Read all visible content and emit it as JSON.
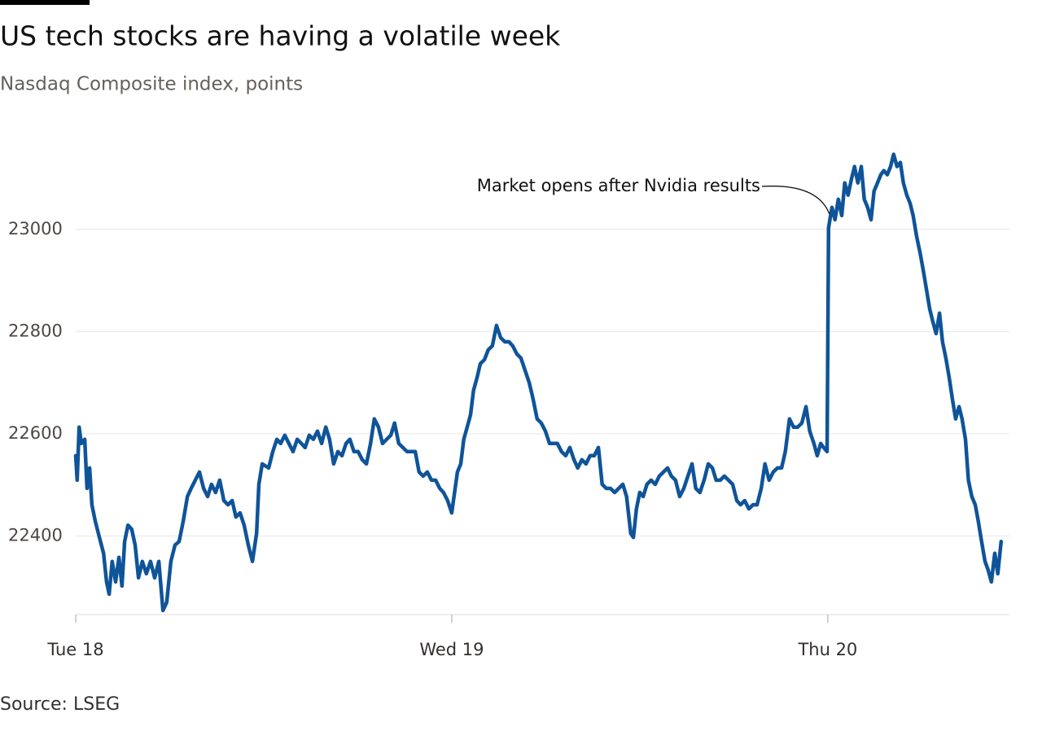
{
  "chart_data": {
    "type": "line",
    "title": "US tech stocks are having a volatile week",
    "subtitle": "Nasdaq Composite index, points",
    "source": "Source: LSEG",
    "annotation": "Market opens after Nvidia results",
    "annotation_x": 2.0,
    "annotation_y": 23030,
    "xlim": [
      0,
      2.483
    ],
    "ylim": [
      22246,
      23210
    ],
    "xticks": [
      {
        "value": 0,
        "label": "Tue 18"
      },
      {
        "value": 1,
        "label": "Wed 19"
      },
      {
        "value": 2,
        "label": "Thu 20"
      }
    ],
    "yticks": [
      22400,
      22600,
      22800,
      23000
    ],
    "grid": true,
    "series": [
      {
        "name": "Nasdaq Composite",
        "color": "#0f5499",
        "x": [
          0,
          0.004,
          0.009,
          0.015,
          0.024,
          0.03,
          0.037,
          0.043,
          0.052,
          0.063,
          0.074,
          0.082,
          0.089,
          0.097,
          0.106,
          0.115,
          0.123,
          0.13,
          0.139,
          0.149,
          0.158,
          0.167,
          0.177,
          0.188,
          0.199,
          0.21,
          0.221,
          0.232,
          0.242,
          0.253,
          0.264,
          0.275,
          0.286,
          0.297,
          0.307,
          0.318,
          0.329,
          0.34,
          0.351,
          0.361,
          0.372,
          0.383,
          0.394,
          0.405,
          0.416,
          0.426,
          0.437,
          0.448,
          0.459,
          0.47,
          0.481,
          0.487,
          0.496,
          0.513,
          0.524,
          0.535,
          0.545,
          0.556,
          0.567,
          0.578,
          0.589,
          0.6,
          0.61,
          0.621,
          0.632,
          0.643,
          0.654,
          0.665,
          0.675,
          0.686,
          0.697,
          0.708,
          0.719,
          0.729,
          0.74,
          0.751,
          0.762,
          0.773,
          0.784,
          0.794,
          0.805,
          0.816,
          0.827,
          0.838,
          0.848,
          0.859,
          0.87,
          0.881,
          0.892,
          0.903,
          0.913,
          0.924,
          0.935,
          0.946,
          0.957,
          0.968,
          0.978,
          0.989,
          1.0,
          1.006,
          1.015,
          1.024,
          1.032,
          1.041,
          1.05,
          1.058,
          1.067,
          1.076,
          1.087,
          1.097,
          1.108,
          1.119,
          1.13,
          1.141,
          1.152,
          1.162,
          1.173,
          1.184,
          1.195,
          1.206,
          1.216,
          1.227,
          1.238,
          1.249,
          1.26,
          1.271,
          1.281,
          1.292,
          1.303,
          1.314,
          1.325,
          1.335,
          1.346,
          1.357,
          1.368,
          1.379,
          1.39,
          1.4,
          1.411,
          1.422,
          1.433,
          1.444,
          1.455,
          1.465,
          1.476,
          1.483,
          1.491,
          1.5,
          1.509,
          1.519,
          1.53,
          1.541,
          1.552,
          1.563,
          1.574,
          1.584,
          1.595,
          1.606,
          1.617,
          1.628,
          1.639,
          1.649,
          1.66,
          1.671,
          1.682,
          1.693,
          1.703,
          1.714,
          1.725,
          1.736,
          1.747,
          1.758,
          1.768,
          1.779,
          1.79,
          1.801,
          1.812,
          1.823,
          1.833,
          1.844,
          1.855,
          1.866,
          1.877,
          1.887,
          1.898,
          1.909,
          1.92,
          1.931,
          1.942,
          1.952,
          1.963,
          1.972,
          1.981,
          1.989,
          1.998,
          2.002,
          2.011,
          2.019,
          2.028,
          2.037,
          2.045,
          2.054,
          2.063,
          2.071,
          2.08,
          2.089,
          2.097,
          2.106,
          2.115,
          2.123,
          2.132,
          2.141,
          2.149,
          2.158,
          2.167,
          2.175,
          2.184,
          2.193,
          2.201,
          2.21,
          2.219,
          2.227,
          2.236,
          2.245,
          2.253,
          2.262,
          2.271,
          2.279,
          2.288,
          2.297,
          2.305,
          2.314,
          2.323,
          2.331,
          2.34,
          2.349,
          2.357,
          2.366,
          2.374,
          2.383,
          2.392,
          2.4,
          2.409,
          2.418,
          2.426,
          2.435,
          2.444,
          2.452,
          2.461
        ],
        "values": [
          22557,
          22509,
          22613,
          22581,
          22589,
          22493,
          22533,
          22461,
          22429,
          22397,
          22366,
          22310,
          22286,
          22350,
          22310,
          22358,
          22302,
          22389,
          22421,
          22413,
          22382,
          22318,
          22350,
          22326,
          22350,
          22318,
          22350,
          22254,
          22270,
          22350,
          22382,
          22389,
          22429,
          22477,
          22493,
          22509,
          22525,
          22493,
          22477,
          22501,
          22485,
          22509,
          22469,
          22461,
          22469,
          22437,
          22445,
          22421,
          22382,
          22350,
          22405,
          22501,
          22541,
          22533,
          22565,
          22589,
          22581,
          22597,
          22581,
          22565,
          22589,
          22581,
          22573,
          22597,
          22589,
          22605,
          22581,
          22613,
          22589,
          22541,
          22565,
          22557,
          22581,
          22589,
          22565,
          22565,
          22549,
          22541,
          22581,
          22629,
          22613,
          22581,
          22589,
          22597,
          22621,
          22581,
          22573,
          22565,
          22565,
          22565,
          22525,
          22517,
          22525,
          22509,
          22509,
          22493,
          22485,
          22469,
          22445,
          22477,
          22525,
          22541,
          22589,
          22613,
          22637,
          22685,
          22709,
          22737,
          22745,
          22764,
          22772,
          22812,
          22788,
          22780,
          22780,
          22772,
          22756,
          22748,
          22724,
          22700,
          22669,
          22629,
          22621,
          22605,
          22581,
          22581,
          22581,
          22565,
          22557,
          22573,
          22549,
          22533,
          22549,
          22541,
          22557,
          22557,
          22573,
          22501,
          22493,
          22493,
          22485,
          22493,
          22501,
          22477,
          22405,
          22397,
          22453,
          22485,
          22477,
          22501,
          22509,
          22501,
          22517,
          22525,
          22533,
          22517,
          22509,
          22477,
          22493,
          22517,
          22541,
          22493,
          22485,
          22509,
          22541,
          22533,
          22509,
          22509,
          22517,
          22509,
          22501,
          22469,
          22461,
          22469,
          22453,
          22461,
          22461,
          22493,
          22541,
          22509,
          22525,
          22533,
          22533,
          22565,
          22629,
          22613,
          22613,
          22621,
          22653,
          22605,
          22581,
          22557,
          22581,
          22573,
          22565,
          23003,
          23043,
          23019,
          23059,
          23027,
          23091,
          23067,
          23099,
          23123,
          23091,
          23123,
          23059,
          23043,
          23019,
          23075,
          23091,
          23107,
          23115,
          23107,
          23123,
          23147,
          23123,
          23131,
          23091,
          23067,
          23051,
          23027,
          22987,
          22955,
          22923,
          22884,
          22844,
          22820,
          22796,
          22836,
          22780,
          22748,
          22709,
          22669,
          22629,
          22653,
          22629,
          22589,
          22509,
          22477,
          22461,
          22429,
          22389,
          22350,
          22334,
          22310,
          22366,
          22326,
          22389
        ]
      }
    ]
  }
}
